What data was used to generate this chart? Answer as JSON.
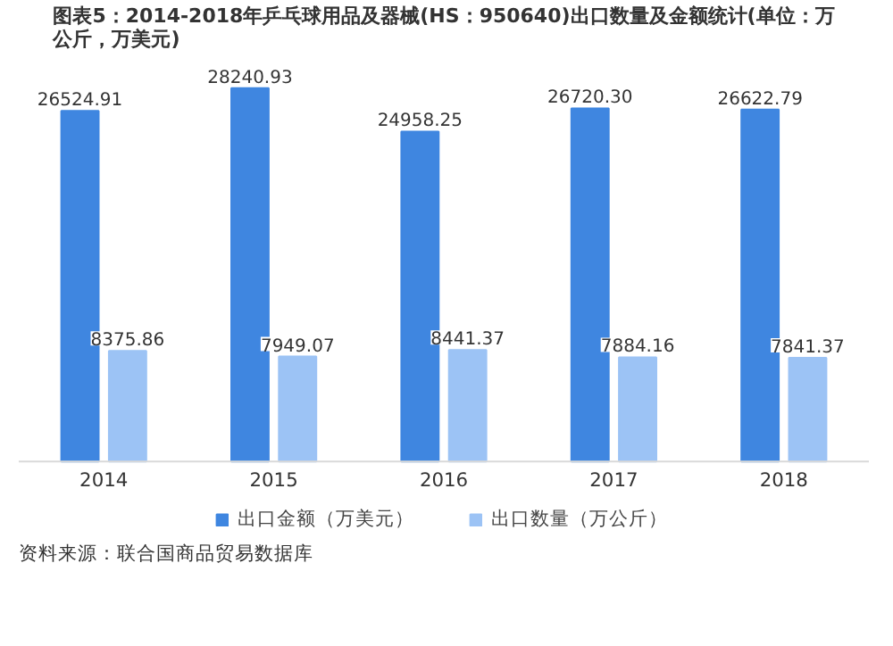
{
  "chart_data": {
    "type": "bar",
    "title": "图表5：2014-2018年乒乓球用品及器械(HS：950640)出口数量及金额统计(单位：万公斤，万美元)",
    "categories": [
      "2014",
      "2015",
      "2016",
      "2017",
      "2018"
    ],
    "series": [
      {
        "name": "出口金额（万美元）",
        "color": "#3f86e0",
        "values": [
          26524.91,
          28240.93,
          24958.25,
          26720.3,
          26622.79
        ],
        "value_labels": [
          "26524.91",
          "28240.93",
          "24958.25",
          "26720.30",
          "26622.79"
        ]
      },
      {
        "name": "出口数量（万公斤）",
        "color": "#9cc3f5",
        "values": [
          8375.86,
          7949.07,
          8441.37,
          7884.16,
          7841.37
        ],
        "value_labels": [
          "8375.86",
          "7949.07",
          "8441.37",
          "7884.16",
          "7841.37"
        ]
      }
    ],
    "legend": "bottom",
    "annotations": [
      "资料来源：联合国商品贸易数据库"
    ]
  }
}
